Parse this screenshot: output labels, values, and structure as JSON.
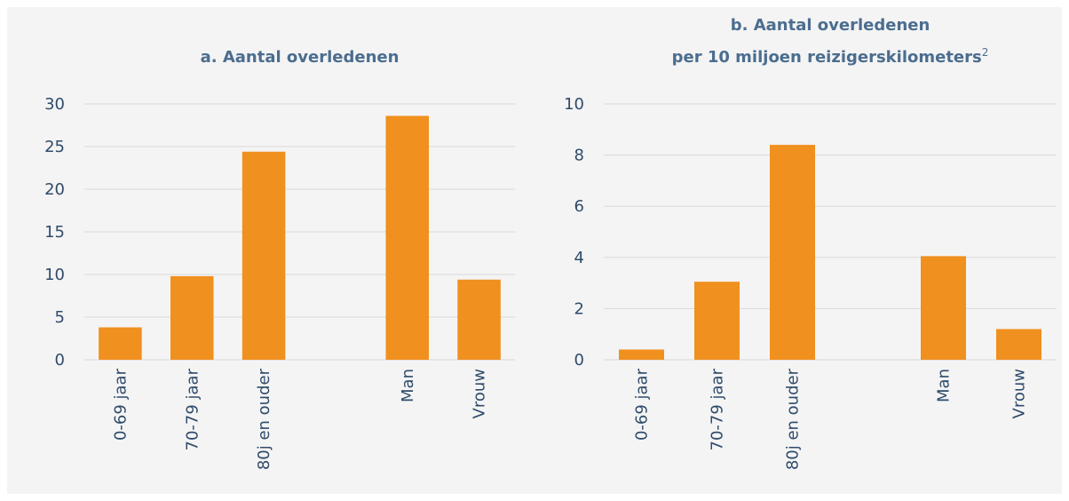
{
  "chart_data": [
    {
      "type": "bar",
      "title_lines": [
        "a. Aantal overledenen"
      ],
      "categories": [
        "0-69 jaar",
        "70-79 jaar",
        "80j en ouder",
        null,
        "Man",
        "Vrouw"
      ],
      "values": [
        3.8,
        9.8,
        24.4,
        null,
        28.6,
        9.4
      ],
      "color": "#f0901e",
      "ylim": [
        0,
        30
      ],
      "yticks": [
        0,
        5,
        10,
        15,
        20,
        25,
        30
      ],
      "grid": true
    },
    {
      "type": "bar",
      "title_lines": [
        "b. Aantal overledenen",
        "per 10 miljoen reizigerskilometers"
      ],
      "title_footnote": "2",
      "categories": [
        "0-69 jaar",
        "70-79 jaar",
        "80j en ouder",
        null,
        "Man",
        "Vrouw"
      ],
      "values": [
        0.4,
        3.05,
        8.4,
        null,
        4.05,
        1.2
      ],
      "color": "#f0901e",
      "ylim": [
        0,
        10
      ],
      "yticks": [
        0,
        2,
        4,
        6,
        8,
        10
      ],
      "grid": true
    }
  ]
}
